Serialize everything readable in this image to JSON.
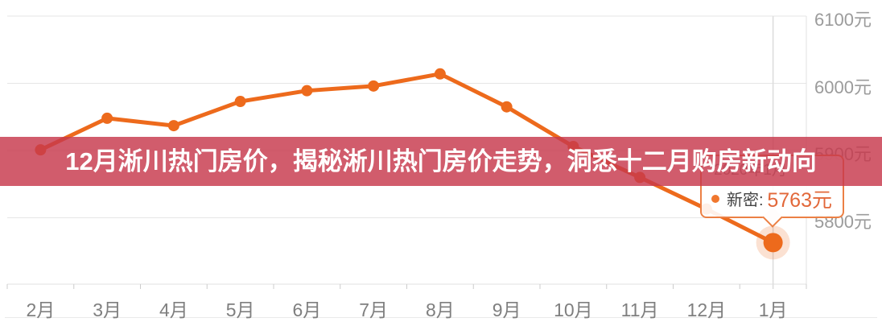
{
  "overlay": {
    "title": "12月淅川热门房价，揭秘淅川热门房价走势，洞悉十二月购房新动向"
  },
  "tooltip": {
    "date": "2020年1月",
    "series_label": "新密:",
    "value": "5763元"
  },
  "colors": {
    "line": "#ed6a1c",
    "point_halo": "rgba(237,106,28,0.20)",
    "band_background": "rgba(199,56,76,0.82)",
    "title_text": "#ffffff",
    "tooltip_border": "#ec8044",
    "tooltip_value": "#e2683a",
    "tooltip_dot": "#f0772e",
    "grid": "#e6e6e6",
    "axis": "#e0e0e0",
    "tick": "#cccccc",
    "axis_pointer": "#dcdcdc",
    "x_label": "#7f7f7f",
    "y_label": "#9b9b9b"
  },
  "chart_data": {
    "type": "line",
    "categories": [
      "2月",
      "3月",
      "4月",
      "5月",
      "6月",
      "7月",
      "8月",
      "9月",
      "10月",
      "11月",
      "12月",
      "1月"
    ],
    "series": [
      {
        "name": "新密",
        "values": [
          5901,
          5948,
          5937,
          5973,
          5989,
          5996,
          6014,
          5965,
          5906,
          5860,
          5813,
          5763
        ]
      }
    ],
    "unit": "元",
    "y_ticks": [
      {
        "value": 6100,
        "label": "6100元"
      },
      {
        "value": 6000,
        "label": "6000元"
      },
      {
        "value": 5900,
        "label": "5900元"
      },
      {
        "value": 5800,
        "label": "5800元"
      }
    ],
    "ylim": [
      5701,
      6124
    ],
    "grid": true,
    "legend": "none",
    "highlighted_index": 11,
    "highlighted_value_label": "5763元"
  }
}
